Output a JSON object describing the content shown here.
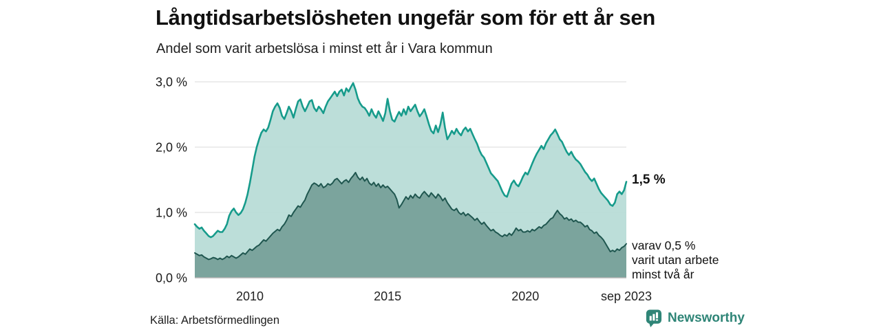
{
  "header": {
    "title": "Långtidsarbetslösheten ungefär som för ett år sen",
    "subtitle": "Andel som varit arbetslösa i minst ett år i Vara kommun"
  },
  "footer": {
    "source": "Källa: Arbetsförmedlingen",
    "logo_text": "Newsworthy"
  },
  "colors": {
    "outer_stroke": "#169b8b",
    "outer_fill": "#b7dcd6",
    "inner_stroke": "#1f564f",
    "inner_fill": "#7ba49d",
    "gridline": "#d9d9d9",
    "axis_line": "#b3b3b3",
    "brand_teal": "#2f8577"
  },
  "chart_data": {
    "type": "area",
    "title": "Långtidsarbetslösheten ungefär som för ett år sen",
    "subtitle": "Andel som varit arbetslösa i minst ett år i Vara kommun",
    "x_start_year": 2008,
    "x_start_month": 1,
    "x_end_label_month": "sep 2023",
    "x_interval": "monthly",
    "ylim": [
      0,
      3.0
    ],
    "grid": true,
    "y_ticks": [
      0,
      1,
      2,
      3
    ],
    "y_tick_labels": [
      "0,0 %",
      "1,0 %",
      "2,0 %",
      "3,0 %"
    ],
    "x_ticks_years": [
      2010,
      2015,
      2020,
      2023.667
    ],
    "x_tick_labels": [
      "2010",
      "2015",
      "2020",
      "sep 2023"
    ],
    "annotations": {
      "outer_end_label": "1,5 %",
      "inner_end_lines": [
        "varav 0,5 %",
        "varit utan arbete",
        "minst två år"
      ]
    },
    "series": [
      {
        "name": "Andel som varit arbetslösa i minst ett år",
        "end_value": 1.5,
        "values": [
          0.82,
          0.78,
          0.75,
          0.77,
          0.72,
          0.68,
          0.64,
          0.62,
          0.64,
          0.68,
          0.72,
          0.7,
          0.7,
          0.75,
          0.82,
          0.95,
          1.02,
          1.06,
          1.0,
          0.96,
          0.99,
          1.05,
          1.15,
          1.28,
          1.45,
          1.65,
          1.85,
          2.0,
          2.12,
          2.22,
          2.27,
          2.24,
          2.3,
          2.42,
          2.55,
          2.62,
          2.67,
          2.6,
          2.48,
          2.43,
          2.52,
          2.62,
          2.55,
          2.45,
          2.58,
          2.7,
          2.73,
          2.62,
          2.55,
          2.62,
          2.7,
          2.72,
          2.6,
          2.55,
          2.62,
          2.58,
          2.52,
          2.62,
          2.7,
          2.75,
          2.8,
          2.85,
          2.78,
          2.85,
          2.88,
          2.79,
          2.9,
          2.85,
          2.92,
          2.98,
          2.88,
          2.75,
          2.67,
          2.62,
          2.6,
          2.55,
          2.48,
          2.58,
          2.5,
          2.45,
          2.55,
          2.48,
          2.4,
          2.52,
          2.74,
          2.55,
          2.42,
          2.39,
          2.47,
          2.54,
          2.48,
          2.58,
          2.5,
          2.62,
          2.55,
          2.6,
          2.65,
          2.55,
          2.47,
          2.52,
          2.58,
          2.47,
          2.35,
          2.25,
          2.21,
          2.33,
          2.23,
          2.35,
          2.53,
          2.3,
          2.12,
          2.18,
          2.25,
          2.2,
          2.28,
          2.22,
          2.18,
          2.26,
          2.3,
          2.24,
          2.28,
          2.2,
          2.12,
          2.05,
          1.95,
          1.88,
          1.84,
          1.76,
          1.68,
          1.6,
          1.56,
          1.52,
          1.48,
          1.4,
          1.32,
          1.26,
          1.24,
          1.34,
          1.44,
          1.49,
          1.43,
          1.4,
          1.47,
          1.55,
          1.61,
          1.58,
          1.66,
          1.75,
          1.83,
          1.9,
          1.96,
          2.02,
          1.97,
          2.06,
          2.12,
          2.18,
          2.22,
          2.27,
          2.2,
          2.12,
          2.08,
          2.0,
          1.93,
          1.88,
          1.93,
          1.86,
          1.81,
          1.78,
          1.74,
          1.68,
          1.62,
          1.58,
          1.52,
          1.48,
          1.52,
          1.44,
          1.36,
          1.3,
          1.26,
          1.22,
          1.18,
          1.12,
          1.1,
          1.15,
          1.28,
          1.32,
          1.28,
          1.34,
          1.47
        ]
      },
      {
        "name": "varav arbetslösa minst två år",
        "end_value": 0.5,
        "values": [
          0.38,
          0.36,
          0.34,
          0.35,
          0.32,
          0.3,
          0.28,
          0.29,
          0.31,
          0.3,
          0.28,
          0.3,
          0.28,
          0.3,
          0.33,
          0.31,
          0.34,
          0.32,
          0.3,
          0.32,
          0.35,
          0.38,
          0.36,
          0.4,
          0.44,
          0.42,
          0.45,
          0.48,
          0.5,
          0.54,
          0.58,
          0.56,
          0.6,
          0.64,
          0.68,
          0.71,
          0.74,
          0.72,
          0.78,
          0.82,
          0.88,
          0.96,
          0.94,
          1.0,
          1.05,
          1.1,
          1.08,
          1.14,
          1.19,
          1.28,
          1.35,
          1.42,
          1.45,
          1.43,
          1.4,
          1.44,
          1.38,
          1.4,
          1.44,
          1.42,
          1.45,
          1.5,
          1.52,
          1.48,
          1.44,
          1.48,
          1.5,
          1.46,
          1.52,
          1.56,
          1.61,
          1.54,
          1.5,
          1.54,
          1.48,
          1.52,
          1.45,
          1.42,
          1.46,
          1.4,
          1.44,
          1.38,
          1.42,
          1.38,
          1.4,
          1.36,
          1.32,
          1.28,
          1.2,
          1.07,
          1.12,
          1.18,
          1.24,
          1.2,
          1.26,
          1.22,
          1.28,
          1.24,
          1.22,
          1.28,
          1.32,
          1.28,
          1.24,
          1.3,
          1.26,
          1.22,
          1.28,
          1.24,
          1.18,
          1.22,
          1.15,
          1.1,
          1.05,
          1.03,
          1.06,
          1.0,
          0.97,
          1.0,
          0.95,
          0.98,
          0.95,
          0.92,
          0.88,
          0.91,
          0.86,
          0.82,
          0.85,
          0.8,
          0.76,
          0.72,
          0.74,
          0.7,
          0.68,
          0.65,
          0.63,
          0.66,
          0.64,
          0.68,
          0.65,
          0.7,
          0.76,
          0.72,
          0.74,
          0.7,
          0.7,
          0.72,
          0.7,
          0.74,
          0.72,
          0.75,
          0.78,
          0.76,
          0.8,
          0.82,
          0.86,
          0.9,
          0.92,
          0.98,
          1.03,
          0.98,
          0.95,
          0.9,
          0.92,
          0.88,
          0.9,
          0.86,
          0.88,
          0.85,
          0.85,
          0.82,
          0.78,
          0.8,
          0.74,
          0.72,
          0.68,
          0.7,
          0.65,
          0.62,
          0.58,
          0.52,
          0.46,
          0.4,
          0.42,
          0.4,
          0.44,
          0.42,
          0.46,
          0.48,
          0.52
        ]
      }
    ]
  }
}
